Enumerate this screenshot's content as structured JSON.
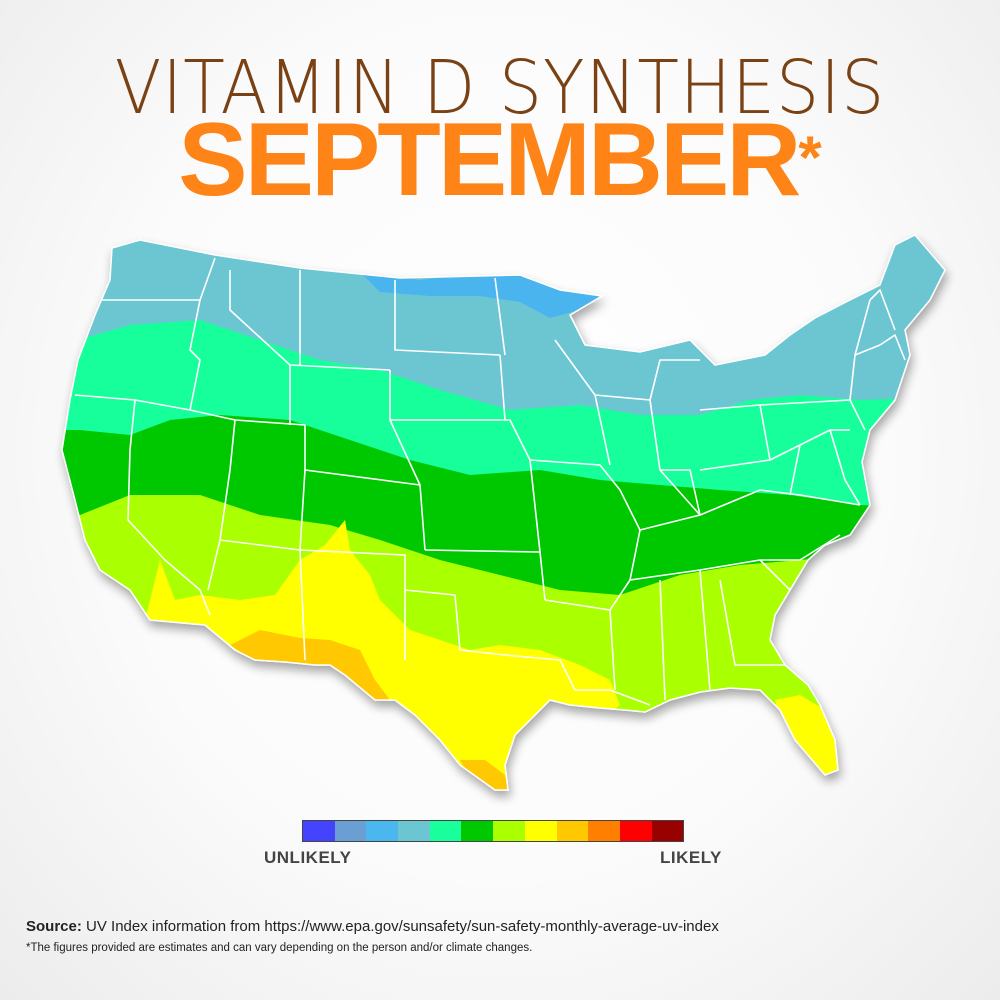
{
  "title": {
    "line1": "VITAMIN D SYNTHESIS",
    "line2": "SEPTEMBER",
    "asterisk": "*"
  },
  "map": {
    "name": "Contiguous United States",
    "zones": [
      {
        "band": "blue",
        "color": "#4ab4ee"
      },
      {
        "band": "light-teal",
        "color": "#6cc6d2"
      },
      {
        "band": "mint",
        "color": "#19ff9b"
      },
      {
        "band": "green",
        "color": "#00c800"
      },
      {
        "band": "yellow-green",
        "color": "#aaff00"
      },
      {
        "band": "yellow",
        "color": "#ffff00"
      },
      {
        "band": "amber",
        "color": "#ffc800"
      }
    ]
  },
  "legend": {
    "low_label": "UNLIKELY",
    "high_label": "LIKELY",
    "colors": [
      "#4444ff",
      "#6a9fd4",
      "#4ab8ee",
      "#6cc6d2",
      "#19ff9b",
      "#00c800",
      "#aaff00",
      "#ffff00",
      "#ffc800",
      "#ff8000",
      "#ff0000",
      "#990000"
    ]
  },
  "footer": {
    "source_label": "Source:",
    "source_text": " UV Index information from https://www.epa.gov/sunsafety/sun-safety-monthly-average-uv-index",
    "footnote": "*The figures provided are estimates and can vary depending on the person and/or climate changes."
  }
}
